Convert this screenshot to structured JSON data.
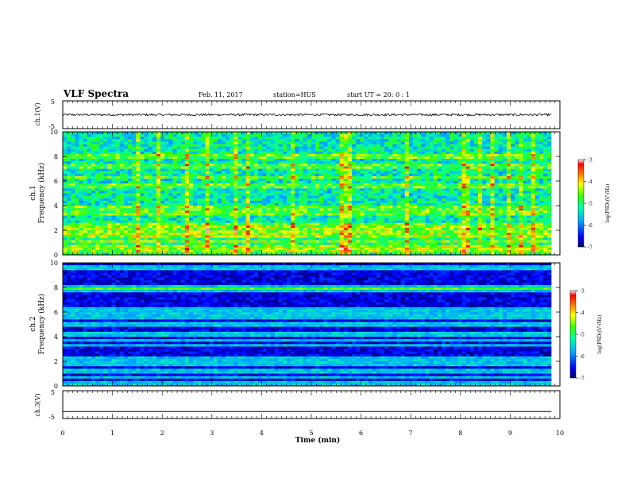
{
  "header": {
    "title": "VLF Spectra",
    "date": "Feb. 11, 2017",
    "station": "station=HUS",
    "start": "start  UT =   20: 0  : 1"
  },
  "chart_data": [
    {
      "type": "line",
      "name": "ch1-waveform",
      "ylabel": "ch.1(V)",
      "ylim": [
        -5,
        5
      ],
      "y_ticks": [
        "5",
        "-5"
      ],
      "xlim": [
        0,
        10
      ],
      "x_end": 9.83,
      "trace_mean": 0.0,
      "trace_amplitude": 0.4,
      "color": "#000000"
    },
    {
      "type": "heatmap",
      "name": "ch1-spectrogram",
      "ylabel_line1": "ch.1",
      "ylabel_line2": "Frequency (kHz)",
      "ylim": [
        0,
        10
      ],
      "y_ticks": [
        "0",
        "2",
        "4",
        "6",
        "8",
        "10"
      ],
      "xlim": [
        0,
        10
      ],
      "x_end": 9.83,
      "colorbar": {
        "label": "log(PSD)(V²/Hz)",
        "range": [
          -7,
          -3
        ],
        "ticks": [
          "-3",
          "-4",
          "-5",
          "-6",
          "-7"
        ]
      },
      "description_levels": {
        "background_log_psd": -5.3,
        "vertical_burst_log_psd": -4.8,
        "horizontal_line_freqs_khz": [
          0.3,
          0.6,
          1.1,
          1.6,
          2.0,
          2.4,
          3.4,
          3.8,
          5.6,
          6.3,
          7.2,
          8.0
        ]
      }
    },
    {
      "type": "heatmap",
      "name": "ch2-spectrogram",
      "ylabel_line1": "ch.2",
      "ylabel_line2": "Frequency (kHz)",
      "ylim": [
        0,
        10
      ],
      "y_ticks": [
        "0",
        "2",
        "4",
        "6",
        "8",
        "10"
      ],
      "xlim": [
        0,
        10
      ],
      "x_end": 9.83,
      "colorbar": {
        "label": "log(PSD)(V²/Hz)",
        "range": [
          -7,
          -3
        ],
        "ticks": [
          "-3",
          "-4",
          "-5",
          "-6",
          "-7"
        ]
      },
      "description_levels": {
        "background_log_psd": -6.6,
        "band_freqs_khz": [
          0.2,
          0.7,
          1.2,
          1.8,
          2.2,
          3.3,
          3.7,
          4.2,
          5.0,
          5.6,
          6.0,
          6.3,
          7.8,
          8.0,
          9.6
        ],
        "band_log_psd": -5.5
      }
    },
    {
      "type": "line",
      "name": "ch3-waveform",
      "ylabel": "ch.3(V)",
      "ylim": [
        -5,
        5
      ],
      "y_ticks": [
        "5",
        "-5"
      ],
      "xlim": [
        0,
        10
      ],
      "x_end": 9.83,
      "trace_mean": -2.5,
      "trace_amplitude": 0.0,
      "color": "#000000"
    }
  ],
  "x_axis": {
    "label": "Time (min)",
    "ticks": [
      "0",
      "1",
      "2",
      "3",
      "4",
      "5",
      "6",
      "7",
      "8",
      "9",
      "10"
    ]
  }
}
